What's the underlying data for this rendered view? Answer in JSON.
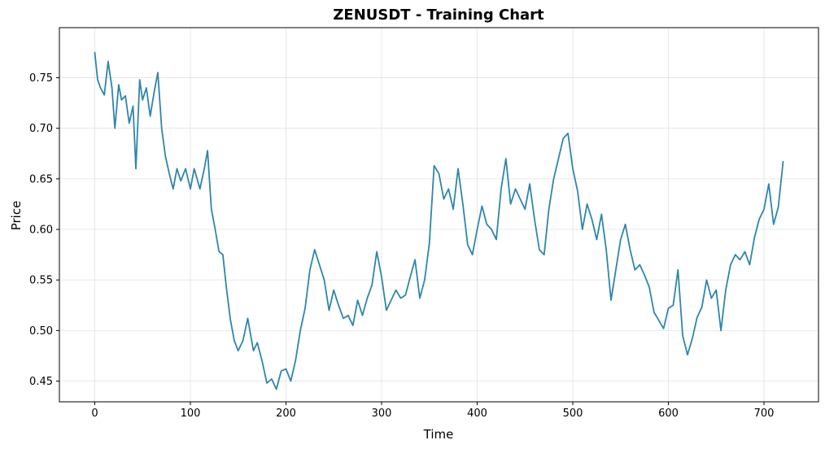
{
  "chart_data": {
    "type": "line",
    "title": "ZENUSDT - Training Chart",
    "xlabel": "Time",
    "ylabel": "Price",
    "xlim": [
      -37,
      757
    ],
    "ylim": [
      0.4295,
      0.7995
    ],
    "x_ticks": [
      0,
      100,
      200,
      300,
      400,
      500,
      600,
      700
    ],
    "x_tick_labels": [
      "0",
      "100",
      "200",
      "300",
      "400",
      "500",
      "600",
      "700"
    ],
    "y_ticks": [
      0.45,
      0.5,
      0.55,
      0.6,
      0.65,
      0.7,
      0.75
    ],
    "y_tick_labels": [
      "0.45",
      "0.50",
      "0.55",
      "0.60",
      "0.65",
      "0.70",
      "0.75"
    ],
    "grid": true,
    "line_color": "#2e86ab",
    "series": [
      {
        "x": [
          0,
          3,
          6,
          10,
          14,
          18,
          21,
          25,
          28,
          32,
          36,
          40,
          43,
          47,
          50,
          54,
          58,
          62,
          66,
          70,
          74,
          78,
          82,
          86,
          90,
          95,
          100,
          104,
          110,
          115,
          118,
          122,
          126,
          130,
          134,
          138,
          142,
          146,
          150,
          155,
          160,
          166,
          170,
          175,
          180,
          185,
          190,
          195,
          200,
          205,
          210,
          215,
          220,
          225,
          230,
          235,
          240,
          245,
          250,
          255,
          260,
          265,
          270,
          275,
          280,
          285,
          290,
          295,
          300,
          305,
          310,
          315,
          320,
          325,
          330,
          335,
          340,
          345,
          350,
          355,
          360,
          365,
          370,
          375,
          380,
          385,
          390,
          395,
          400,
          405,
          410,
          415,
          420,
          425,
          430,
          435,
          440,
          445,
          450,
          455,
          460,
          465,
          470,
          475,
          480,
          485,
          490,
          495,
          500,
          505,
          510,
          515,
          520,
          525,
          530,
          535,
          540,
          545,
          550,
          555,
          560,
          565,
          570,
          575,
          580,
          585,
          590,
          595,
          600,
          605,
          610,
          615,
          620,
          625,
          630,
          635,
          640,
          645,
          650,
          655,
          660,
          665,
          670,
          675,
          680,
          685,
          690,
          695,
          700,
          705,
          710,
          715,
          720
        ],
        "y": [
          0.775,
          0.748,
          0.74,
          0.733,
          0.766,
          0.74,
          0.7,
          0.743,
          0.728,
          0.732,
          0.705,
          0.722,
          0.66,
          0.748,
          0.728,
          0.74,
          0.712,
          0.735,
          0.755,
          0.7,
          0.672,
          0.655,
          0.64,
          0.66,
          0.648,
          0.66,
          0.64,
          0.66,
          0.64,
          0.662,
          0.678,
          0.62,
          0.6,
          0.578,
          0.575,
          0.54,
          0.51,
          0.49,
          0.48,
          0.49,
          0.512,
          0.48,
          0.488,
          0.47,
          0.448,
          0.452,
          0.442,
          0.46,
          0.462,
          0.45,
          0.47,
          0.5,
          0.522,
          0.56,
          0.58,
          0.565,
          0.55,
          0.52,
          0.54,
          0.525,
          0.512,
          0.515,
          0.505,
          0.53,
          0.515,
          0.532,
          0.545,
          0.578,
          0.553,
          0.52,
          0.53,
          0.54,
          0.532,
          0.535,
          0.553,
          0.57,
          0.532,
          0.55,
          0.586,
          0.663,
          0.655,
          0.63,
          0.64,
          0.62,
          0.66,
          0.625,
          0.585,
          0.575,
          0.6,
          0.623,
          0.605,
          0.6,
          0.59,
          0.64,
          0.67,
          0.625,
          0.64,
          0.63,
          0.62,
          0.645,
          0.61,
          0.58,
          0.575,
          0.62,
          0.65,
          0.67,
          0.69,
          0.695,
          0.66,
          0.638,
          0.6,
          0.625,
          0.61,
          0.59,
          0.615,
          0.58,
          0.53,
          0.56,
          0.59,
          0.605,
          0.58,
          0.56,
          0.565,
          0.555,
          0.543,
          0.518,
          0.51,
          0.502,
          0.522,
          0.525,
          0.56,
          0.495,
          0.476,
          0.492,
          0.513,
          0.523,
          0.55,
          0.532,
          0.54,
          0.5,
          0.54,
          0.565,
          0.575,
          0.57,
          0.578,
          0.565,
          0.592,
          0.61,
          0.62,
          0.645,
          0.605,
          0.622,
          0.667
        ]
      }
    ]
  }
}
